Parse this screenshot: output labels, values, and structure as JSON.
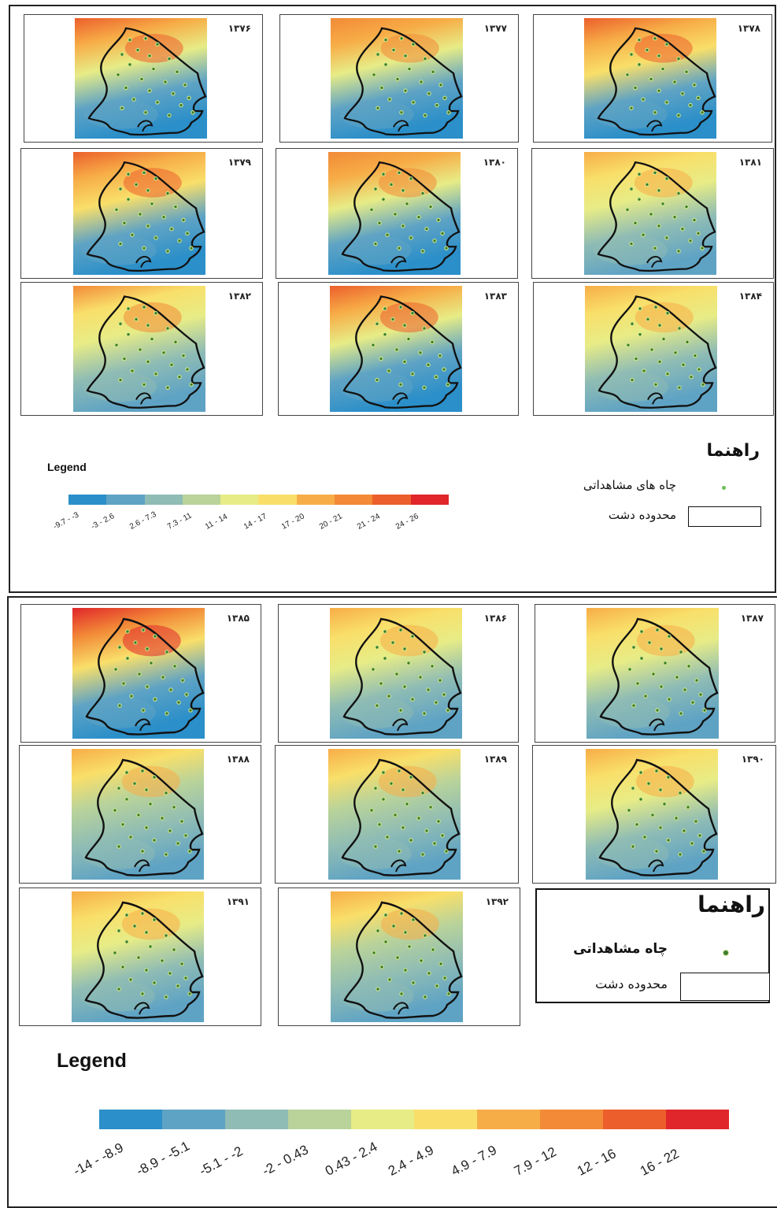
{
  "top_section": {
    "years": [
      "۱۳۷۶",
      "۱۳۷۷",
      "۱۳۷۸",
      "۱۳۷۹",
      "۱۳۸۰",
      "۱۳۸۱",
      "۱۳۸۲",
      "۱۳۸۳",
      "۱۳۸۴"
    ],
    "fields": [
      0.7,
      0.55,
      0.75,
      0.75,
      0.6,
      0.35,
      0.4,
      0.7,
      0.3
    ],
    "legend_title": "Legend",
    "classes": [
      "-9.7 - -3",
      "-3 - 2.6",
      "2.6 - 7.3",
      "7.3 - 11",
      "11 - 14",
      "14 - 17",
      "17 - 20",
      "20 - 21",
      "21 - 24",
      "24 - 26"
    ],
    "key_title": "راهنما",
    "key_wells": "چاه های مشاهداتی",
    "key_boundary": "محدوده دشت"
  },
  "bottom_section": {
    "years": [
      "۱۳۸۵",
      "۱۳۸۶",
      "۱۳۸۷",
      "۱۳۸۸",
      "۱۳۸۹",
      "۱۳۹۰",
      "۱۳۹۱",
      "۱۳۹۲"
    ],
    "fields": [
      0.9,
      0.25,
      0.25,
      0.2,
      0.2,
      0.25,
      0.3,
      0.2
    ],
    "legend_title": "Legend",
    "classes": [
      "-14 - -8.9",
      "-8.9 - -5.1",
      "-5.1 - -2",
      "-2 - 0.43",
      "0.43 - 2.4",
      "2.4 - 4.9",
      "4.9 - 7.9",
      "7.9 - 12",
      "12 - 16",
      "16 - 22"
    ],
    "key_title": "راهنما",
    "key_wells": "چاه مشاهداتی",
    "key_boundary": "محدوده دشت"
  },
  "palette": [
    "#2b8fc9",
    "#5fa3c4",
    "#8fbcb4",
    "#b9d39a",
    "#e7ec86",
    "#f9df6a",
    "#f7ad47",
    "#f28a37",
    "#ec5f2c",
    "#e0262a"
  ]
}
